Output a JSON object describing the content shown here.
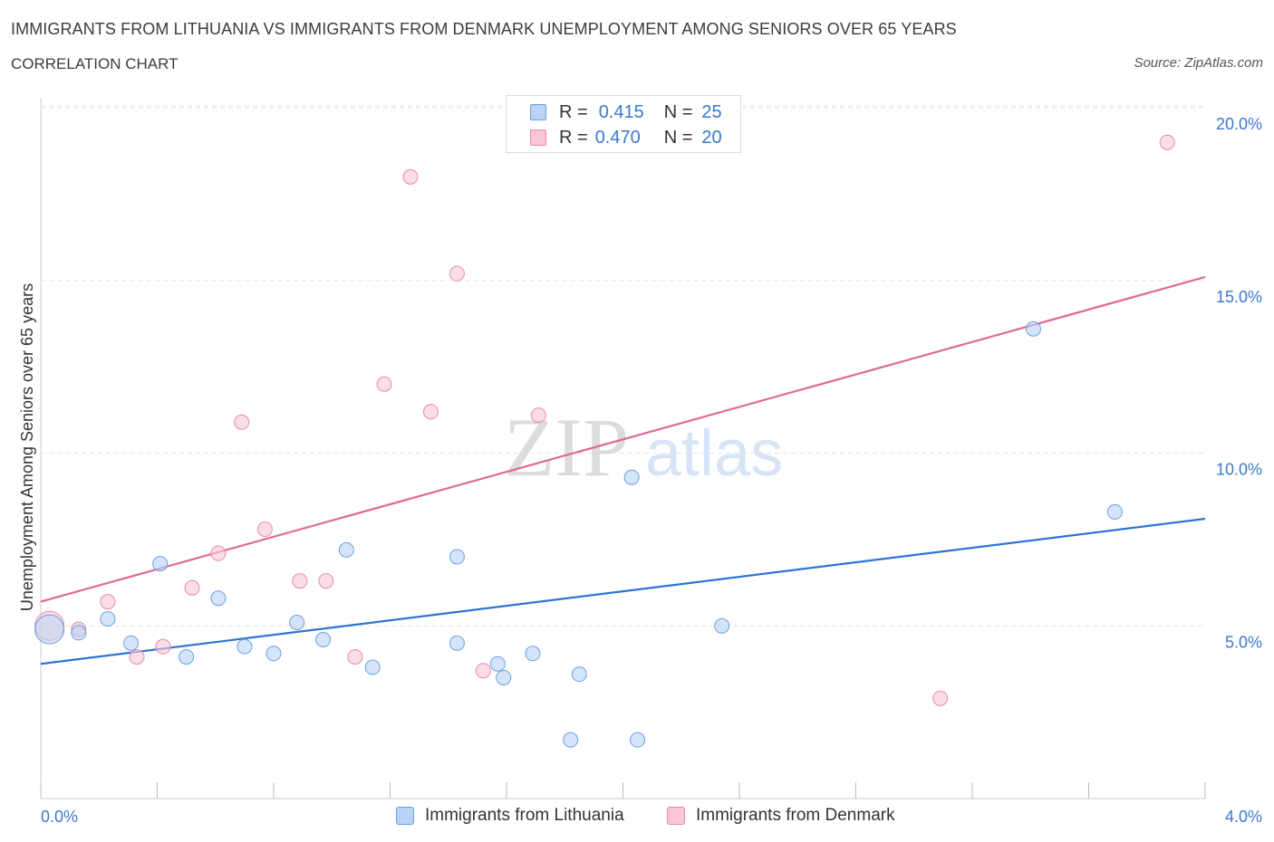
{
  "header": {
    "title": "IMMIGRANTS FROM LITHUANIA VS IMMIGRANTS FROM DENMARK UNEMPLOYMENT AMONG SENIORS OVER 65 YEARS",
    "subtitle": "CORRELATION CHART",
    "source": "Source: ZipAtlas.com"
  },
  "legend": {
    "rows": [
      {
        "r_label": "R =",
        "r_value": "0.415",
        "n_label": "N =",
        "n_value": "25"
      },
      {
        "r_label": "R =",
        "r_value": "0.470",
        "n_label": "N =",
        "n_value": "20"
      }
    ]
  },
  "watermark": {
    "zip": "ZIP",
    "atlas": "atlas"
  },
  "colors": {
    "lithuania_fill": "#b8d3f5",
    "lithuania_stroke": "#6a9fe0",
    "lithuania_line": "#2f73d4",
    "denmark_fill": "#f8c6d6",
    "denmark_stroke": "#e88aa8",
    "denmark_line": "#e06a92",
    "axis_value": "#3a78c9",
    "grid": "#e3e3e3"
  },
  "chart_data": {
    "type": "scatter",
    "title": "IMMIGRANTS FROM LITHUANIA VS IMMIGRANTS FROM DENMARK UNEMPLOYMENT AMONG SENIORS OVER 65 YEARS",
    "xlabel": "",
    "ylabel": "Unemployment Among Seniors over 65 years",
    "xlim": [
      0,
      4.0
    ],
    "ylim": [
      0,
      20.5
    ],
    "x_tick_labels": [
      "0.0%",
      "4.0%"
    ],
    "y_ticks": [
      5,
      10,
      15,
      20
    ],
    "y_tick_labels": [
      "5.0%",
      "10.0%",
      "15.0%",
      "20.0%"
    ],
    "grid": true,
    "legend_position": "top-center",
    "series": [
      {
        "name": "Immigrants from Lithuania",
        "color": "#b8d3f5",
        "points": [
          {
            "x": 0.03,
            "y": 4.9
          },
          {
            "x": 0.13,
            "y": 4.8
          },
          {
            "x": 0.23,
            "y": 5.2
          },
          {
            "x": 0.31,
            "y": 4.5
          },
          {
            "x": 0.41,
            "y": 6.8
          },
          {
            "x": 0.5,
            "y": 4.1
          },
          {
            "x": 0.61,
            "y": 5.8
          },
          {
            "x": 0.7,
            "y": 4.4
          },
          {
            "x": 0.8,
            "y": 4.2
          },
          {
            "x": 0.88,
            "y": 5.1
          },
          {
            "x": 0.97,
            "y": 4.6
          },
          {
            "x": 1.05,
            "y": 7.2
          },
          {
            "x": 1.14,
            "y": 3.8
          },
          {
            "x": 1.43,
            "y": 7.0
          },
          {
            "x": 1.43,
            "y": 4.5
          },
          {
            "x": 1.57,
            "y": 3.9
          },
          {
            "x": 1.59,
            "y": 3.5
          },
          {
            "x": 1.69,
            "y": 4.2
          },
          {
            "x": 1.82,
            "y": 1.7
          },
          {
            "x": 1.85,
            "y": 3.6
          },
          {
            "x": 2.03,
            "y": 9.3
          },
          {
            "x": 2.05,
            "y": 1.7
          },
          {
            "x": 2.34,
            "y": 5.0
          },
          {
            "x": 3.41,
            "y": 13.6
          },
          {
            "x": 3.69,
            "y": 8.3
          }
        ],
        "trendline": {
          "x": [
            0,
            4.0
          ],
          "y": [
            3.9,
            8.1
          ]
        }
      },
      {
        "name": "Immigrants from Denmark",
        "color": "#f8c6d6",
        "points": [
          {
            "x": 0.03,
            "y": 5.0
          },
          {
            "x": 0.13,
            "y": 4.9
          },
          {
            "x": 0.23,
            "y": 5.7
          },
          {
            "x": 0.33,
            "y": 4.1
          },
          {
            "x": 0.42,
            "y": 4.4
          },
          {
            "x": 0.52,
            "y": 6.1
          },
          {
            "x": 0.61,
            "y": 7.1
          },
          {
            "x": 0.69,
            "y": 10.9
          },
          {
            "x": 0.77,
            "y": 7.8
          },
          {
            "x": 0.89,
            "y": 6.3
          },
          {
            "x": 0.98,
            "y": 6.3
          },
          {
            "x": 1.08,
            "y": 4.1
          },
          {
            "x": 1.18,
            "y": 12.0
          },
          {
            "x": 1.27,
            "y": 18.0
          },
          {
            "x": 1.34,
            "y": 11.2
          },
          {
            "x": 1.43,
            "y": 15.2
          },
          {
            "x": 1.52,
            "y": 3.7
          },
          {
            "x": 1.71,
            "y": 11.1
          },
          {
            "x": 3.09,
            "y": 2.9
          },
          {
            "x": 3.87,
            "y": 19.0
          }
        ],
        "trendline": {
          "x": [
            0,
            4.0
          ],
          "y": [
            5.7,
            15.1
          ]
        }
      }
    ]
  },
  "bottom_legend": {
    "items": [
      {
        "label": "Immigrants from Lithuania"
      },
      {
        "label": "Immigrants from Denmark"
      }
    ]
  }
}
